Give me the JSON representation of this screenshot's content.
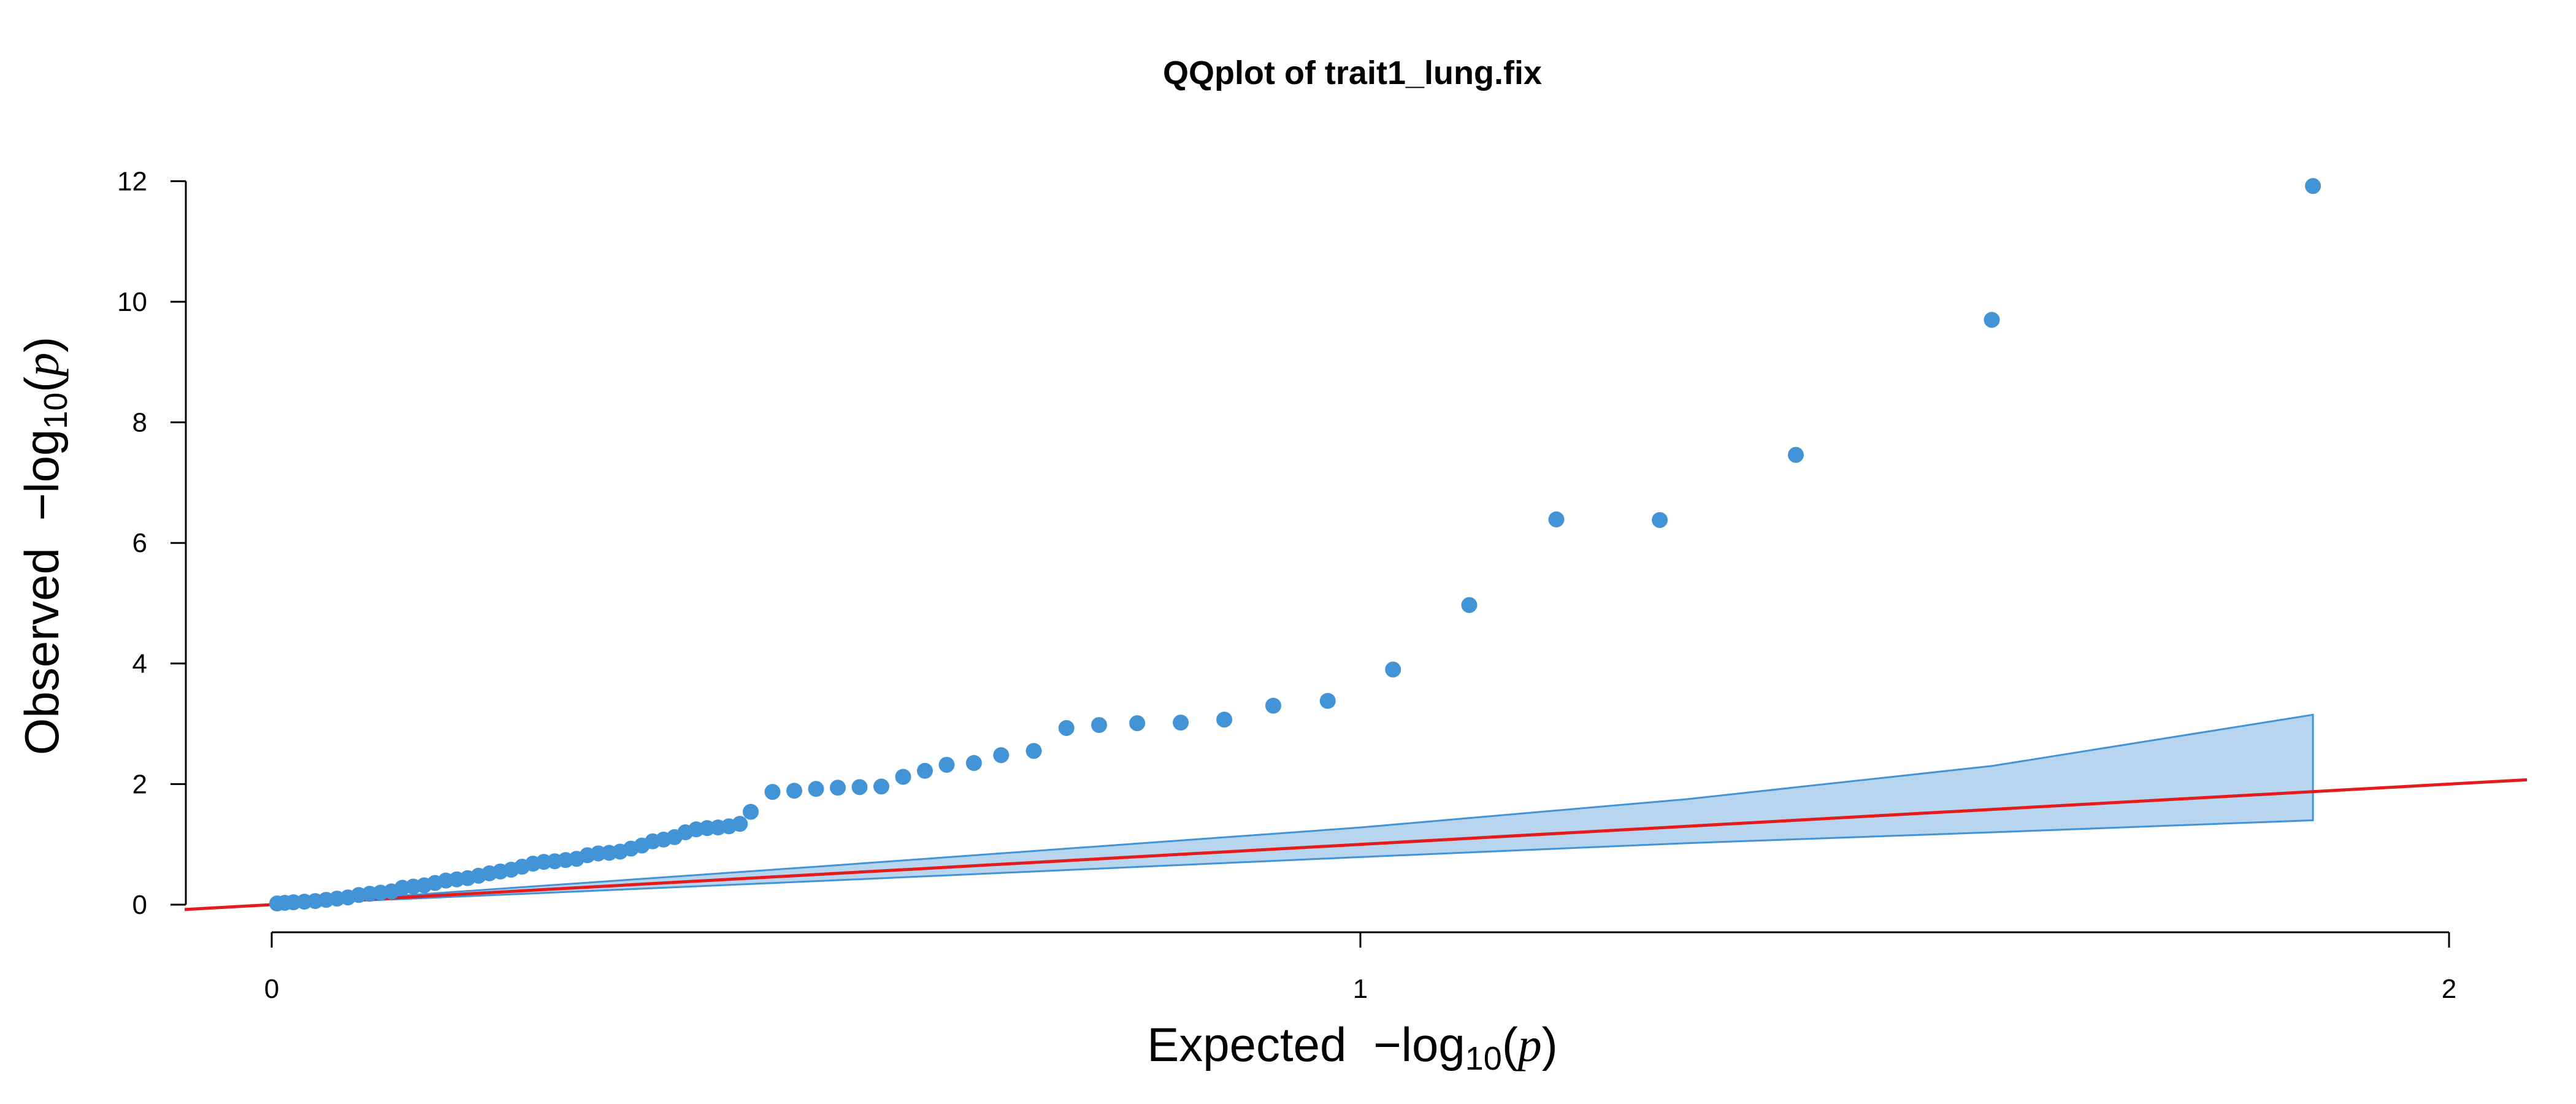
{
  "chart_data": {
    "type": "scatter",
    "title": "QQplot of trait1_lung.fix",
    "xlabel": {
      "prefix": "Expected",
      "minus": "−log",
      "sub": "10",
      "open": "(",
      "var": "p",
      "close": ")"
    },
    "ylabel": {
      "prefix": "Observed",
      "minus": "−log",
      "sub": "10",
      "open": "(",
      "var": "p",
      "close": ")"
    },
    "xlim": [
      -0.08,
      2.08
    ],
    "ylim": [
      0,
      12
    ],
    "xticks": [
      "0",
      "1",
      "2"
    ],
    "yticks": [
      "0",
      "2",
      "4",
      "6",
      "8",
      "10",
      "12"
    ],
    "point_color": "#4394d6",
    "band_fill": "#b8d5ef",
    "band_stroke": "#4394d6",
    "line_color": "#e41a1c",
    "reference_line": {
      "slope": 1,
      "intercept": 0
    },
    "points": [
      [
        0.005,
        0.02
      ],
      [
        0.012,
        0.03
      ],
      [
        0.02,
        0.04
      ],
      [
        0.03,
        0.05
      ],
      [
        0.04,
        0.06
      ],
      [
        0.05,
        0.08
      ],
      [
        0.06,
        0.1
      ],
      [
        0.07,
        0.12
      ],
      [
        0.08,
        0.16
      ],
      [
        0.09,
        0.18
      ],
      [
        0.1,
        0.2
      ],
      [
        0.11,
        0.22
      ],
      [
        0.12,
        0.28
      ],
      [
        0.13,
        0.3
      ],
      [
        0.14,
        0.32
      ],
      [
        0.15,
        0.36
      ],
      [
        0.16,
        0.4
      ],
      [
        0.17,
        0.42
      ],
      [
        0.18,
        0.44
      ],
      [
        0.19,
        0.48
      ],
      [
        0.2,
        0.52
      ],
      [
        0.21,
        0.55
      ],
      [
        0.22,
        0.58
      ],
      [
        0.23,
        0.63
      ],
      [
        0.24,
        0.68
      ],
      [
        0.25,
        0.71
      ],
      [
        0.26,
        0.72
      ],
      [
        0.27,
        0.74
      ],
      [
        0.28,
        0.76
      ],
      [
        0.29,
        0.82
      ],
      [
        0.3,
        0.85
      ],
      [
        0.31,
        0.86
      ],
      [
        0.32,
        0.88
      ],
      [
        0.33,
        0.93
      ],
      [
        0.34,
        0.98
      ],
      [
        0.35,
        1.05
      ],
      [
        0.36,
        1.08
      ],
      [
        0.37,
        1.12
      ],
      [
        0.38,
        1.2
      ],
      [
        0.39,
        1.25
      ],
      [
        0.4,
        1.27
      ],
      [
        0.41,
        1.28
      ],
      [
        0.42,
        1.3
      ],
      [
        0.43,
        1.34
      ],
      [
        0.44,
        1.54
      ],
      [
        0.46,
        1.87
      ],
      [
        0.48,
        1.89
      ],
      [
        0.5,
        1.92
      ],
      [
        0.52,
        1.94
      ],
      [
        0.54,
        1.95
      ],
      [
        0.56,
        1.96
      ],
      [
        0.58,
        2.12
      ],
      [
        0.6,
        2.22
      ],
      [
        0.62,
        2.32
      ],
      [
        0.645,
        2.35
      ],
      [
        0.67,
        2.48
      ],
      [
        0.7,
        2.55
      ],
      [
        0.73,
        2.93
      ],
      [
        0.76,
        2.98
      ],
      [
        0.795,
        3.01
      ],
      [
        0.835,
        3.02
      ],
      [
        0.875,
        3.07
      ],
      [
        0.92,
        3.3
      ],
      [
        0.97,
        3.38
      ],
      [
        1.03,
        3.9
      ],
      [
        1.1,
        4.97
      ],
      [
        1.18,
        6.39
      ],
      [
        1.275,
        6.38
      ],
      [
        1.4,
        7.46
      ],
      [
        1.58,
        9.7
      ],
      [
        1.875,
        11.92
      ]
    ],
    "band": [
      {
        "x": 0.0,
        "lower": 0.0,
        "upper": 0.0
      },
      {
        "x": 0.5,
        "lower": 0.39,
        "upper": 0.63
      },
      {
        "x": 1.0,
        "lower": 0.79,
        "upper": 1.28
      },
      {
        "x": 1.3,
        "lower": 1.02,
        "upper": 1.75
      },
      {
        "x": 1.58,
        "lower": 1.2,
        "upper": 2.3
      },
      {
        "x": 1.875,
        "lower": 1.4,
        "upper": 3.15
      }
    ]
  }
}
